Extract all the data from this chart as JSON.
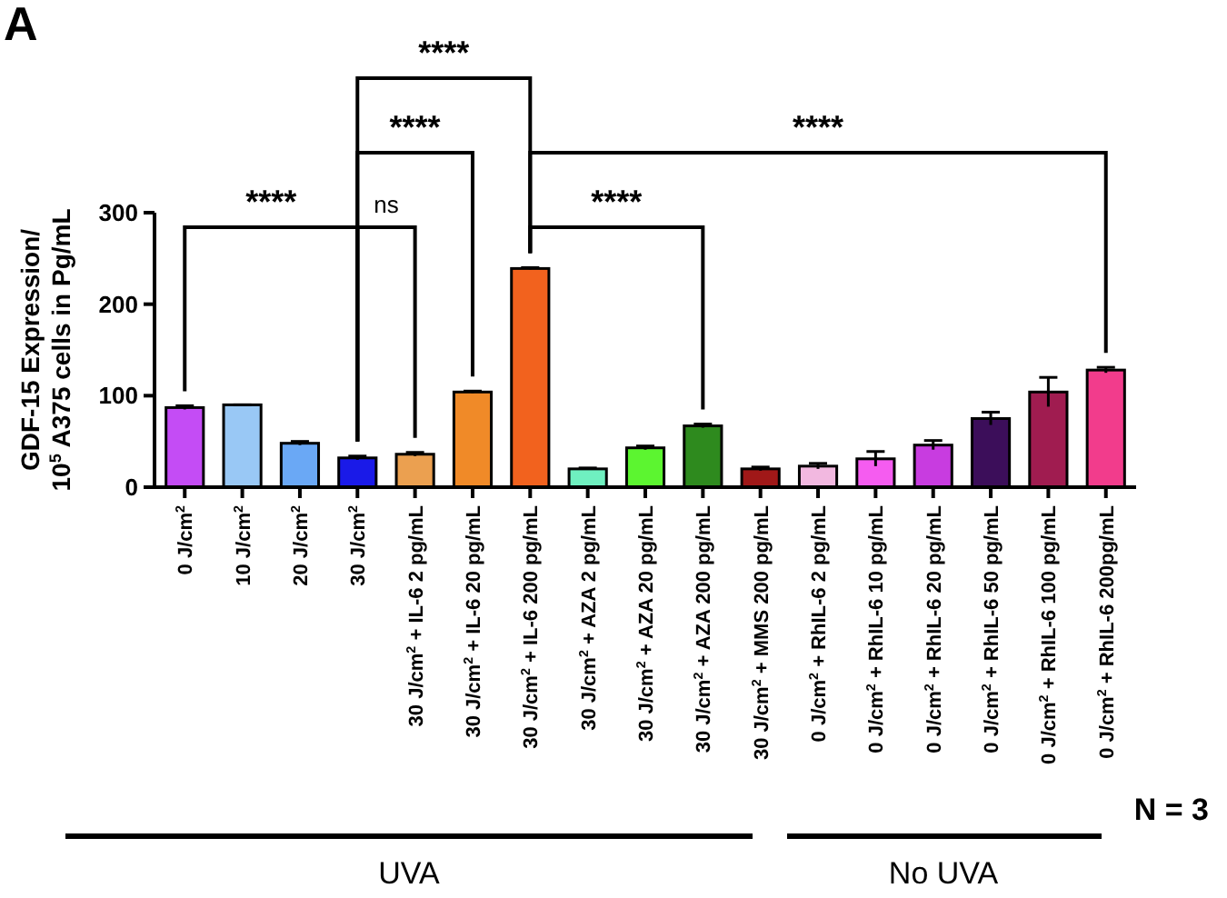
{
  "chart_data": {
    "type": "bar",
    "ylabel": "GDF-15 Expression/\n10$^{5}$ A375 cells in Pg/mL",
    "categories": [
      "0 J/cm$^{2}$",
      "10 J/cm$^{2}$",
      "20 J/cm$^{2}$",
      "30 J/cm$^{2}$",
      "30 J/cm$^{2}$ + IL-6 2 pg/mL",
      "30 J/cm$^{2}$ + IL-6 20 pg/mL",
      "30 J/cm$^{2}$ + IL-6 200 pg/mL",
      "30 J/cm$^{2}$ + AZA 2 pg/mL",
      "30 J/cm$^{2}$ + AZA 20 pg/mL",
      "30 J/cm$^{2}$ + AZA 200 pg/mL",
      "30 J/cm$^{2}$ + MMS 200 pg/mL",
      "0 J/cm$^{2}$ + RhIL-6 2 pg/mL",
      "0 J/cm$^{2}$ + RhIL-6 10 pg/mL",
      "0 J/cm$^{2}$ + RhIL-6 20 pg/mL",
      "0 J/cm$^{2}$ + RhIL-6 50 pg/mL",
      "0 J/cm$^{2}$ + RhIL-6 100 pg/mL",
      "0 J/cm$^{2}$ + RhIL-6 200pg/mL"
    ],
    "values": [
      87,
      90,
      48,
      32,
      36,
      104,
      239,
      20,
      43,
      67,
      20,
      23,
      31,
      46,
      75,
      104,
      128
    ],
    "errors": [
      2,
      0,
      2,
      2,
      2,
      1,
      1,
      1,
      2,
      2,
      2,
      3,
      8,
      5,
      7,
      16,
      3
    ],
    "colors": [
      "#c44cf5",
      "#99c8f5",
      "#6aa8f5",
      "#1a1ae8",
      "#eba050",
      "#f08a28",
      "#f2621e",
      "#6ff0c0",
      "#5cf530",
      "#2e8a1e",
      "#a01818",
      "#f2b8e0",
      "#f55cf0",
      "#c83ce0",
      "#3c0e5a",
      "#a01c50",
      "#f23c8c"
    ],
    "ylim": [
      0,
      300
    ],
    "yticks": [
      0,
      100,
      200,
      300
    ],
    "grid": false,
    "annotations": [
      "A",
      "****",
      "ns",
      "****",
      "****",
      "****",
      "****",
      "UVA",
      "No UVA",
      "N = 3"
    ]
  }
}
